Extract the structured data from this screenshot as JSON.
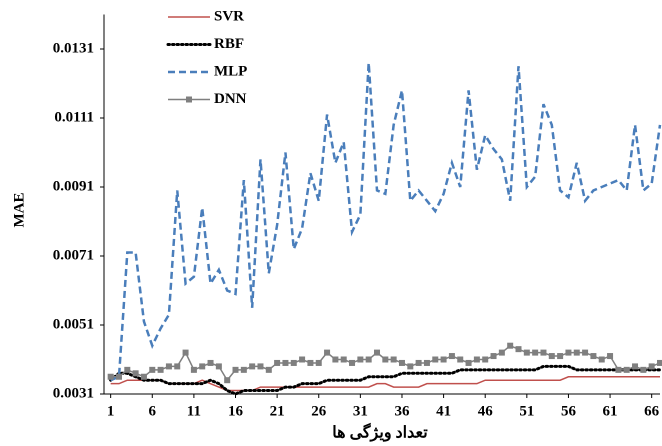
{
  "chart_data": {
    "type": "line",
    "xlabel": "تعداد ویژگی ها",
    "ylabel": "MAE",
    "x": [
      1,
      2,
      3,
      4,
      5,
      6,
      7,
      8,
      9,
      10,
      11,
      12,
      13,
      14,
      15,
      16,
      17,
      18,
      19,
      20,
      21,
      22,
      23,
      24,
      25,
      26,
      27,
      28,
      29,
      30,
      31,
      32,
      33,
      34,
      35,
      36,
      37,
      38,
      39,
      40,
      41,
      42,
      43,
      44,
      45,
      46,
      47,
      48,
      49,
      50,
      51,
      52,
      53,
      54,
      55,
      56,
      57,
      58,
      59,
      60,
      61,
      62,
      63,
      64,
      65,
      66,
      67
    ],
    "xlim": [
      0.2,
      67
    ],
    "xticks": [
      1,
      6,
      11,
      16,
      21,
      26,
      31,
      36,
      41,
      46,
      51,
      56,
      61,
      66
    ],
    "ylim": [
      0.0031,
      0.0141
    ],
    "yticks": [
      0.0031,
      0.0051,
      0.0071,
      0.0091,
      0.0111,
      0.0131
    ],
    "grid": false,
    "legend": "upper left",
    "series": [
      {
        "name": "SVR",
        "color": "#c0504d",
        "style": "solid",
        "marker": false,
        "values": [
          0.0034,
          0.0034,
          0.0035,
          0.0035,
          0.0035,
          0.0035,
          0.0035,
          0.0034,
          0.0034,
          0.0034,
          0.0034,
          0.0035,
          0.0034,
          0.0033,
          0.0032,
          0.0032,
          0.0032,
          0.0032,
          0.0033,
          0.0033,
          0.0033,
          0.0033,
          0.0033,
          0.0033,
          0.0033,
          0.0033,
          0.0033,
          0.0033,
          0.0033,
          0.0033,
          0.0033,
          0.0033,
          0.0034,
          0.0034,
          0.0033,
          0.0033,
          0.0033,
          0.0033,
          0.0034,
          0.0034,
          0.0034,
          0.0034,
          0.0034,
          0.0034,
          0.0034,
          0.0035,
          0.0035,
          0.0035,
          0.0035,
          0.0035,
          0.0035,
          0.0035,
          0.0035,
          0.0035,
          0.0035,
          0.0036,
          0.0036,
          0.0036,
          0.0036,
          0.0036,
          0.0036,
          0.0036,
          0.0036,
          0.0036,
          0.0036,
          0.0036,
          0.0036
        ]
      },
      {
        "name": "RBF",
        "color": "#000000",
        "style": "dotted",
        "marker": false,
        "values": [
          0.0035,
          0.0037,
          0.0037,
          0.0036,
          0.0035,
          0.0035,
          0.0035,
          0.0034,
          0.0034,
          0.0034,
          0.0034,
          0.0034,
          0.0035,
          0.0034,
          0.0032,
          0.0031,
          0.0032,
          0.0032,
          0.0032,
          0.0032,
          0.0032,
          0.0033,
          0.0033,
          0.0034,
          0.0034,
          0.0034,
          0.0035,
          0.0035,
          0.0035,
          0.0035,
          0.0035,
          0.0036,
          0.0036,
          0.0036,
          0.0036,
          0.0037,
          0.0037,
          0.0037,
          0.0037,
          0.0037,
          0.0037,
          0.0037,
          0.0038,
          0.0038,
          0.0038,
          0.0038,
          0.0038,
          0.0038,
          0.0038,
          0.0038,
          0.0038,
          0.0038,
          0.0039,
          0.0039,
          0.0039,
          0.0039,
          0.0038,
          0.0038,
          0.0038,
          0.0038,
          0.0038,
          0.0038,
          0.0038,
          0.0038,
          0.0038,
          0.0038,
          0.0038
        ]
      },
      {
        "name": "MLP",
        "color": "#4a7ebb",
        "style": "dashed",
        "marker": false,
        "values": [
          0.0035,
          0.0036,
          0.0072,
          0.0072,
          0.0052,
          0.0045,
          0.005,
          0.0054,
          0.009,
          0.0063,
          0.0065,
          0.0085,
          0.0063,
          0.0067,
          0.0061,
          0.006,
          0.0093,
          0.0056,
          0.0099,
          0.0066,
          0.008,
          0.0101,
          0.0073,
          0.0079,
          0.0095,
          0.0087,
          0.0112,
          0.0098,
          0.0104,
          0.0078,
          0.0083,
          0.0127,
          0.009,
          0.0089,
          0.0109,
          0.0119,
          0.0087,
          0.009,
          0.0087,
          0.0084,
          0.0089,
          0.0098,
          0.0091,
          0.0119,
          0.0096,
          0.0106,
          0.0102,
          0.0099,
          0.0087,
          0.0126,
          0.0091,
          0.0094,
          0.0115,
          0.0109,
          0.009,
          0.0088,
          0.0098,
          0.0087,
          0.009,
          0.0091,
          0.0092,
          0.0093,
          0.009,
          0.0109,
          0.009,
          0.0092,
          0.0109
        ]
      },
      {
        "name": "DNN",
        "color": "#7f7f7f",
        "style": "solid",
        "marker": true,
        "values": [
          0.0036,
          0.0036,
          0.0038,
          0.0037,
          0.0036,
          0.0038,
          0.0038,
          0.0039,
          0.0039,
          0.0043,
          0.0038,
          0.0039,
          0.004,
          0.0039,
          0.0035,
          0.0038,
          0.0038,
          0.0039,
          0.0039,
          0.0038,
          0.004,
          0.004,
          0.004,
          0.0041,
          0.004,
          0.004,
          0.0043,
          0.0041,
          0.0041,
          0.004,
          0.0041,
          0.0041,
          0.0043,
          0.0041,
          0.0041,
          0.004,
          0.0039,
          0.004,
          0.004,
          0.0041,
          0.0041,
          0.0042,
          0.0041,
          0.004,
          0.0041,
          0.0041,
          0.0042,
          0.0043,
          0.0045,
          0.0044,
          0.0043,
          0.0043,
          0.0043,
          0.0042,
          0.0042,
          0.0043,
          0.0043,
          0.0043,
          0.0042,
          0.0041,
          0.0042,
          0.0038,
          0.0038,
          0.0039,
          0.0038,
          0.0039,
          0.004
        ]
      }
    ]
  }
}
